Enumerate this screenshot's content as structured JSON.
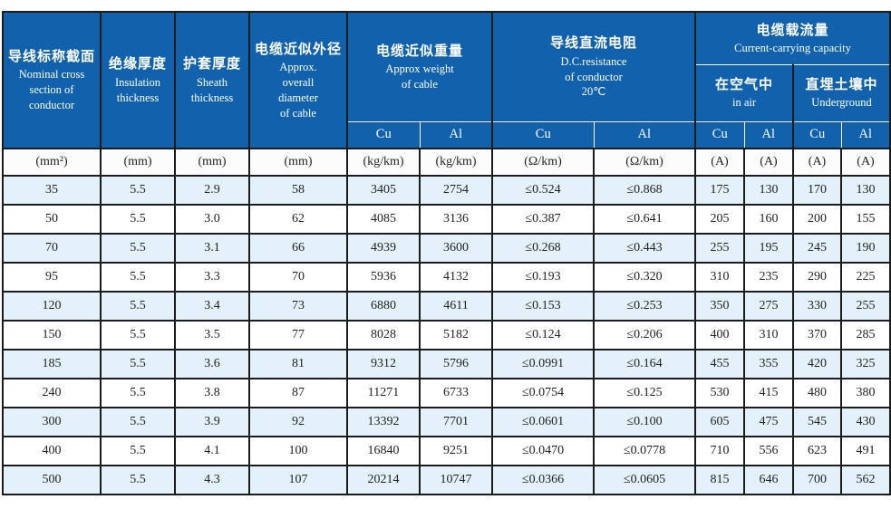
{
  "colors": {
    "header_blue": "#1161ac",
    "row_alt_blue": "#e3f1fa",
    "grid_border": "#1b1b1b"
  },
  "table": {
    "header": {
      "nominal": {
        "zh": "导线标称截面",
        "en": "Nominal  cross\nsection of\nconductor"
      },
      "insulation": {
        "zh": "绝缘厚度",
        "en": "Insulation\nthickness"
      },
      "sheath": {
        "zh": "护套厚度",
        "en": "Sheath\nthickness"
      },
      "diameter": {
        "zh": "电缆近似外径",
        "en": "Approx.\noverall\ndiameter\nof cable"
      },
      "weight": {
        "zh": "电缆近似重量",
        "en": "Approx weight\nof cable"
      },
      "resistance": {
        "zh": "导线直流电阻",
        "en": "D.C.resistance\nof conductor\n20℃"
      },
      "capacity": {
        "zh": "电缆载流量",
        "en": "Current-carrying capacity"
      },
      "in_air": {
        "zh": "在空气中",
        "en": "in air"
      },
      "underground": {
        "zh": "直埋土壤中",
        "en": "Underground"
      },
      "cu_al": [
        "Cu",
        "Al",
        "Cu",
        "Al",
        "Cu",
        "Al",
        "Cu",
        "Al"
      ]
    },
    "units": [
      "(mm²)",
      "(mm)",
      "(mm)",
      "(mm)",
      "(kg/km)",
      "(kg/km)",
      "(Ω/km)",
      "(Ω/km)",
      "(A)",
      "(A)",
      "(A)",
      "(A)"
    ],
    "rows": [
      [
        "35",
        "5.5",
        "2.9",
        "58",
        "3405",
        "2754",
        "≤0.524",
        "≤0.868",
        "175",
        "130",
        "170",
        "130"
      ],
      [
        "50",
        "5.5",
        "3.0",
        "62",
        "4085",
        "3136",
        "≤0.387",
        "≤0.641",
        "205",
        "160",
        "200",
        "155"
      ],
      [
        "70",
        "5.5",
        "3.1",
        "66",
        "4939",
        "3600",
        "≤0.268",
        "≤0.443",
        "255",
        "195",
        "245",
        "190"
      ],
      [
        "95",
        "5.5",
        "3.3",
        "70",
        "5936",
        "4132",
        "≤0.193",
        "≤0.320",
        "310",
        "235",
        "290",
        "225"
      ],
      [
        "120",
        "5.5",
        "3.4",
        "73",
        "6880",
        "4611",
        "≤0.153",
        "≤0.253",
        "350",
        "275",
        "330",
        "255"
      ],
      [
        "150",
        "5.5",
        "3.5",
        "77",
        "8028",
        "5182",
        "≤0.124",
        "≤0.206",
        "400",
        "310",
        "370",
        "285"
      ],
      [
        "185",
        "5.5",
        "3.6",
        "81",
        "9312",
        "5796",
        "≤0.0991",
        "≤0.164",
        "455",
        "355",
        "420",
        "325"
      ],
      [
        "240",
        "5.5",
        "3.8",
        "87",
        "11271",
        "6733",
        "≤0.0754",
        "≤0.125",
        "530",
        "415",
        "480",
        "380"
      ],
      [
        "300",
        "5.5",
        "3.9",
        "92",
        "13392",
        "7701",
        "≤0.0601",
        "≤0.100",
        "605",
        "475",
        "545",
        "430"
      ],
      [
        "400",
        "5.5",
        "4.1",
        "100",
        "16840",
        "9251",
        "≤0.0470",
        "≤0.0778",
        "710",
        "556",
        "623",
        "491"
      ],
      [
        "500",
        "5.5",
        "4.3",
        "107",
        "20214",
        "10747",
        "≤0.0366",
        "≤0.0605",
        "815",
        "646",
        "700",
        "562"
      ]
    ]
  }
}
